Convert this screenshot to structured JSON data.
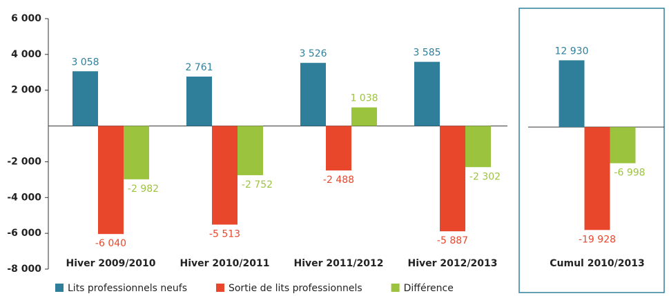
{
  "chart_data": [
    {
      "type": "bar",
      "categories": [
        "Hiver 2009/2010",
        "Hiver 2010/2011",
        "Hiver 2011/2012",
        "Hiver 2012/2013"
      ],
      "series": [
        {
          "name": "Lits professionnels neufs",
          "color": "#2f7f9b",
          "values": [
            3058,
            2761,
            3526,
            3585
          ],
          "value_labels": [
            "3 058",
            "2 761",
            "3 526",
            "3 585"
          ]
        },
        {
          "name": "Sortie de lits professionnels",
          "color": "#e8472b",
          "values": [
            -6040,
            -5513,
            -2488,
            -5887
          ],
          "value_labels": [
            "-6 040",
            "-5 513",
            "-2 488",
            "-5 887"
          ]
        },
        {
          "name": "Différence",
          "color": "#9cc33d",
          "values": [
            -2982,
            -2752,
            1038,
            -2302
          ],
          "value_labels": [
            "-2 982",
            "-2 752",
            "1 038",
            "-2 302"
          ]
        }
      ],
      "ylim": [
        -8000,
        6000
      ],
      "yticks": [
        {
          "value": 6000,
          "label": "6 000"
        },
        {
          "value": 4000,
          "label": "4 000"
        },
        {
          "value": 2000,
          "label": "2 000"
        },
        {
          "value": -2000,
          "label": "-2 000"
        },
        {
          "value": -4000,
          "label": "-4 000"
        },
        {
          "value": -6000,
          "label": "-6 000"
        },
        {
          "value": -8000,
          "label": "-8 000"
        }
      ],
      "legend": "bottom"
    },
    {
      "type": "bar",
      "categories": [
        "Cumul 2010/2013"
      ],
      "series": [
        {
          "color": "#2f7f9b",
          "values": [
            12930
          ],
          "value_labels": [
            "12 930"
          ]
        },
        {
          "color": "#e8472b",
          "values": [
            -19928
          ],
          "value_labels": [
            "-19 928"
          ]
        },
        {
          "color": "#9cc33d",
          "values": [
            -6998
          ],
          "value_labels": [
            "-6 998"
          ]
        }
      ],
      "ylim": [
        -27500,
        21000
      ]
    }
  ]
}
